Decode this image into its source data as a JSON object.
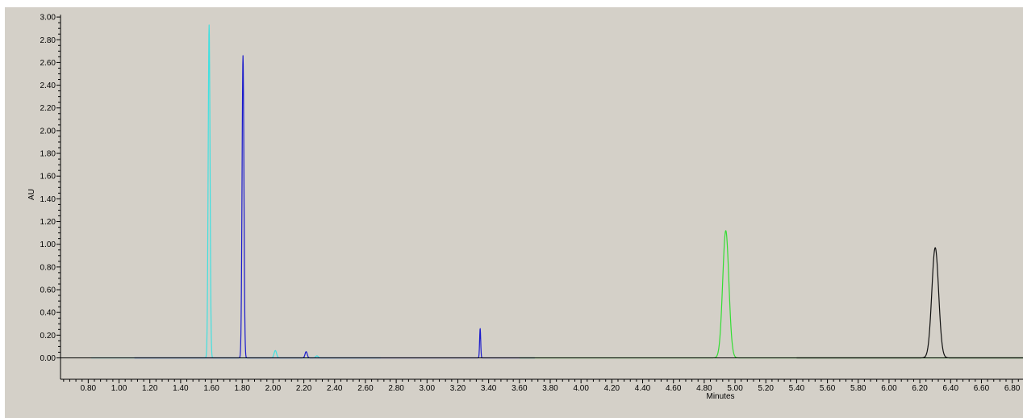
{
  "chart_data": {
    "type": "line",
    "title": "",
    "xlabel": "Minutes",
    "ylabel": "AU",
    "xlim": [
      0.62,
      6.87
    ],
    "ylim": [
      -0.05,
      3.05
    ],
    "grid": false,
    "legend": "none",
    "x_ticks": [
      "0.80",
      "1.00",
      "1.20",
      "1.40",
      "1.60",
      "1.80",
      "2.00",
      "2.20",
      "2.40",
      "2.60",
      "2.80",
      "3.00",
      "3.20",
      "3.40",
      "3.60",
      "3.80",
      "4.00",
      "4.20",
      "4.40",
      "4.60",
      "4.80",
      "5.00",
      "5.20",
      "5.40",
      "5.60",
      "5.80",
      "6.00",
      "6.20",
      "6.40",
      "6.60",
      "6.80"
    ],
    "y_ticks": [
      "0.00",
      "0.20",
      "0.40",
      "0.60",
      "0.80",
      "1.00",
      "1.20",
      "1.40",
      "1.60",
      "1.80",
      "2.00",
      "2.20",
      "2.40",
      "2.60",
      "2.80",
      "3.00"
    ],
    "colors": {
      "plot_background": "#d4d0c8",
      "page_background": "#ffffff",
      "axis": "#000000"
    },
    "series": [
      {
        "color": "#40e0e0",
        "range": [
          0.82,
          2.7
        ],
        "peaks": [
          {
            "rt": 1.585,
            "height": 2.93,
            "width": 0.006
          },
          {
            "rt": 2.015,
            "height": 0.065,
            "width": 0.008
          },
          {
            "rt": 2.285,
            "height": 0.018,
            "width": 0.008
          }
        ]
      },
      {
        "color": "#1a1acc",
        "range": [
          1.1,
          3.7
        ],
        "peaks": [
          {
            "rt": 1.805,
            "height": 2.66,
            "width": 0.006
          },
          {
            "rt": 2.215,
            "height": 0.055,
            "width": 0.007
          },
          {
            "rt": 3.345,
            "height": 0.26,
            "width": 0.0035
          }
        ]
      },
      {
        "color": "#33dd33",
        "range": [
          3.6,
          6.87
        ],
        "peaks": [
          {
            "rt": 4.94,
            "height": 1.12,
            "width": 0.02
          }
        ]
      },
      {
        "color": "#111111",
        "range": [
          5.4,
          6.87
        ],
        "peaks": [
          {
            "rt": 6.3,
            "height": 0.97,
            "width": 0.022
          }
        ]
      }
    ]
  }
}
